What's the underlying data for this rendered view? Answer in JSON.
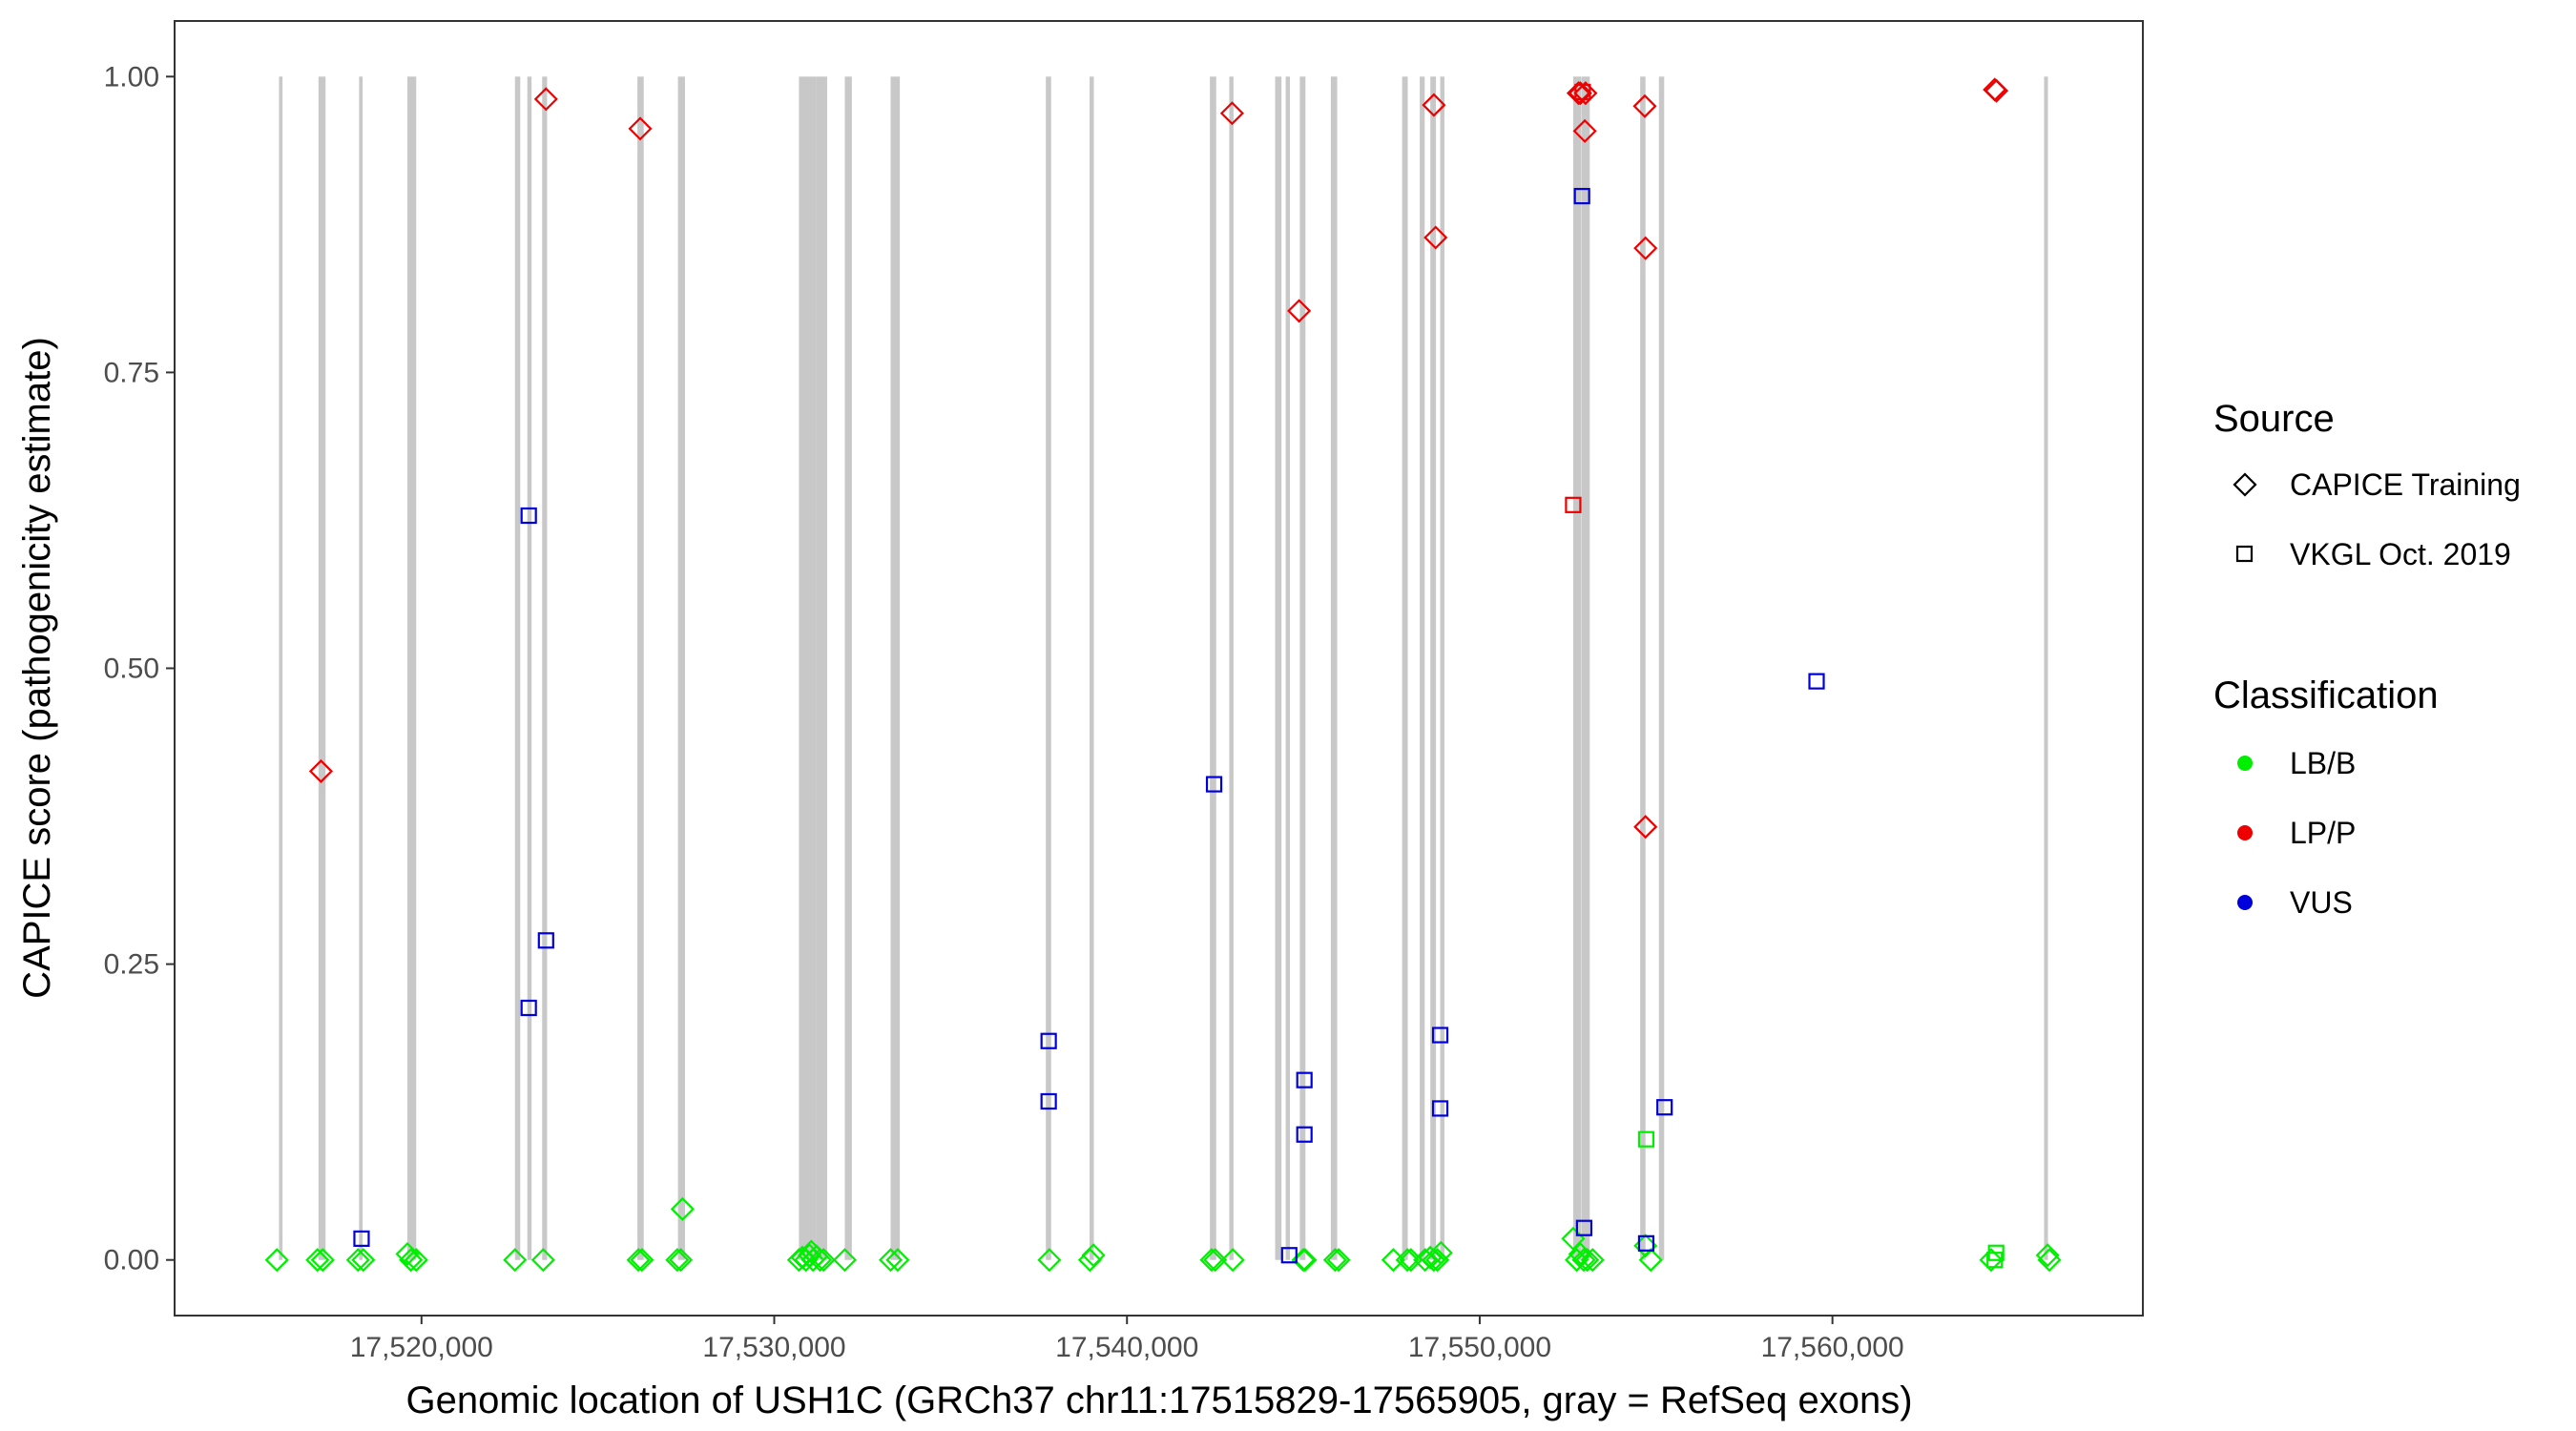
{
  "chart_data": {
    "type": "scatter",
    "xlabel": "Genomic location of USH1C (GRCh37 chr11:17515829-17565905, gray = RefSeq exons)",
    "ylabel": "CAPICE score (pathogenicity estimate)",
    "xlim": [
      17513000,
      17568800
    ],
    "ylim": [
      -0.047,
      1.047
    ],
    "x_ticks": [
      17520000,
      17530000,
      17540000,
      17550000,
      17560000
    ],
    "x_tick_labels": [
      "17,520,000",
      "17,530,000",
      "17,540,000",
      "17,550,000",
      "17,560,000"
    ],
    "y_ticks": [
      0,
      0.25,
      0.5,
      0.75,
      1.0
    ],
    "y_tick_labels": [
      "0.00",
      "0.25",
      "0.50",
      "0.75",
      "1.00"
    ],
    "grid": false,
    "legend_position": "right",
    "exon_color": "#c8c8c8",
    "exons": [
      [
        17515960,
        17516060
      ],
      [
        17517080,
        17517280
      ],
      [
        17518230,
        17518330
      ],
      [
        17519600,
        17519850
      ],
      [
        17522650,
        17522800
      ],
      [
        17523000,
        17523120
      ],
      [
        17523420,
        17523560
      ],
      [
        17526120,
        17526300
      ],
      [
        17527270,
        17527470
      ],
      [
        17530700,
        17531200
      ],
      [
        17531200,
        17531500
      ],
      [
        17532000,
        17532200
      ],
      [
        17533300,
        17533560
      ],
      [
        17537700,
        17537850
      ],
      [
        17538940,
        17539060
      ],
      [
        17542350,
        17542530
      ],
      [
        17542900,
        17543020
      ],
      [
        17544200,
        17544380
      ],
      [
        17544500,
        17544620
      ],
      [
        17544900,
        17545060
      ],
      [
        17545780,
        17545960
      ],
      [
        17547800,
        17547960
      ],
      [
        17548300,
        17548440
      ],
      [
        17548600,
        17548760
      ],
      [
        17548880,
        17549000
      ],
      [
        17552650,
        17552870
      ],
      [
        17552880,
        17553120
      ],
      [
        17554550,
        17554700
      ],
      [
        17555080,
        17555230
      ],
      [
        17566000,
        17566110
      ]
    ],
    "legend_source": {
      "title": "Source",
      "items": [
        {
          "label": "CAPICE Training",
          "shape": "diamond"
        },
        {
          "label": "VKGL Oct. 2019",
          "shape": "square"
        }
      ]
    },
    "legend_classification": {
      "title": "Classification",
      "items": [
        {
          "label": "LB/B",
          "color": "#00ee00"
        },
        {
          "label": "LP/P",
          "color": "#ee0000"
        },
        {
          "label": "VUS",
          "color": "#0000dd"
        }
      ]
    },
    "series": [
      {
        "source": "CAPICE Training",
        "classification": "LB/B",
        "shape": "diamond",
        "color": "#00ee00",
        "points": [
          [
            17515900,
            0.0
          ],
          [
            17517050,
            0.0
          ],
          [
            17517200,
            0.0
          ],
          [
            17518200,
            0.0
          ],
          [
            17518350,
            0.0
          ],
          [
            17519600,
            0.005
          ],
          [
            17519700,
            0.0
          ],
          [
            17519850,
            0.0
          ],
          [
            17522650,
            0.0
          ],
          [
            17523450,
            0.0
          ],
          [
            17526150,
            0.0
          ],
          [
            17526250,
            0.0
          ],
          [
            17527250,
            0.0
          ],
          [
            17527350,
            0.0
          ],
          [
            17527400,
            0.043
          ],
          [
            17530700,
            0.0
          ],
          [
            17530800,
            0.002
          ],
          [
            17530900,
            0.0
          ],
          [
            17531000,
            0.004
          ],
          [
            17531050,
            0.007
          ],
          [
            17531100,
            0.0
          ],
          [
            17531200,
            0.003
          ],
          [
            17531300,
            0.0
          ],
          [
            17531400,
            0.0
          ],
          [
            17532000,
            0.0
          ],
          [
            17533300,
            0.0
          ],
          [
            17533500,
            0.0
          ],
          [
            17537800,
            0.0
          ],
          [
            17538950,
            0.0
          ],
          [
            17539050,
            0.004
          ],
          [
            17542400,
            0.0
          ],
          [
            17542500,
            0.0
          ],
          [
            17543000,
            0.0
          ],
          [
            17545000,
            0.0
          ],
          [
            17545050,
            0.0
          ],
          [
            17545900,
            0.0
          ],
          [
            17546000,
            0.0
          ],
          [
            17547550,
            0.0
          ],
          [
            17547950,
            0.0
          ],
          [
            17548050,
            0.0
          ],
          [
            17548450,
            0.0
          ],
          [
            17548600,
            0.002
          ],
          [
            17548700,
            0.0
          ],
          [
            17548800,
            0.0
          ],
          [
            17548900,
            0.006
          ],
          [
            17552650,
            0.018
          ],
          [
            17552750,
            0.0
          ],
          [
            17552850,
            0.005
          ],
          [
            17552950,
            0.0
          ],
          [
            17553050,
            0.0
          ],
          [
            17553200,
            0.0
          ],
          [
            17554700,
            0.012
          ],
          [
            17554850,
            0.0
          ],
          [
            17564500,
            0.0
          ],
          [
            17566100,
            0.004
          ],
          [
            17566150,
            0.0
          ]
        ]
      },
      {
        "source": "CAPICE Training",
        "classification": "LP/P",
        "shape": "diamond",
        "color": "#ee0000",
        "points": [
          [
            17517150,
            0.413
          ],
          [
            17523530,
            0.981
          ],
          [
            17526200,
            0.956
          ],
          [
            17542980,
            0.969
          ],
          [
            17544880,
            0.802
          ],
          [
            17548700,
            0.976
          ],
          [
            17548750,
            0.864
          ],
          [
            17552800,
            0.986
          ],
          [
            17552850,
            0.986
          ],
          [
            17553000,
            0.986
          ],
          [
            17552980,
            0.954
          ],
          [
            17554680,
            0.975
          ],
          [
            17554700,
            0.855
          ],
          [
            17554700,
            0.366
          ],
          [
            17564600,
            0.989
          ],
          [
            17564650,
            0.988
          ]
        ]
      },
      {
        "source": "VKGL Oct. 2019",
        "classification": "LB/B",
        "shape": "square",
        "color": "#00ee00",
        "points": [
          [
            17554720,
            0.102
          ],
          [
            17564640,
            0.006
          ],
          [
            17564600,
            0.0
          ]
        ]
      },
      {
        "source": "VKGL Oct. 2019",
        "classification": "LP/P",
        "shape": "square",
        "color": "#ee0000",
        "points": [
          [
            17552650,
            0.638
          ],
          [
            17552920,
            0.987
          ]
        ]
      },
      {
        "source": "VKGL Oct. 2019",
        "classification": "VUS",
        "shape": "square",
        "color": "#0000dd",
        "points": [
          [
            17518300,
            0.018
          ],
          [
            17523040,
            0.629
          ],
          [
            17523040,
            0.213
          ],
          [
            17523530,
            0.27
          ],
          [
            17537780,
            0.185
          ],
          [
            17537780,
            0.134
          ],
          [
            17542470,
            0.402
          ],
          [
            17544600,
            0.004
          ],
          [
            17545030,
            0.152
          ],
          [
            17545030,
            0.106
          ],
          [
            17548880,
            0.19
          ],
          [
            17548880,
            0.128
          ],
          [
            17552900,
            0.899
          ],
          [
            17552960,
            0.027
          ],
          [
            17554720,
            0.014
          ],
          [
            17555240,
            0.129
          ],
          [
            17559550,
            0.489
          ]
        ]
      }
    ]
  }
}
